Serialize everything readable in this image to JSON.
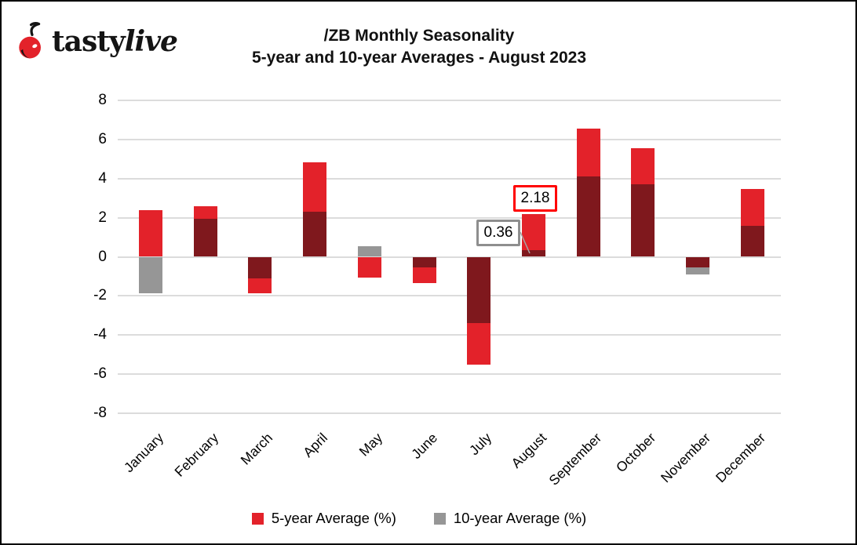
{
  "logo": {
    "tasty": "tasty",
    "live": "live"
  },
  "title": {
    "line1": "/ZB Monthly Seasonality",
    "line2": "5-year and 10-year Averages - August 2023"
  },
  "colors": {
    "five_year": "#E3222A",
    "ten_year": "#969696",
    "overlap": "#7F181D",
    "gridline": "#DCDCDC",
    "callout_red_border": "#FF0000",
    "callout_gray_border": "#8E8E8E",
    "leader_line": "#A6A6A6",
    "cherry": "#E3222A"
  },
  "legend": [
    {
      "label": "5-year Average (%)",
      "color": "#E3222A"
    },
    {
      "label": "10-year Average (%)",
      "color": "#969696"
    }
  ],
  "chart_data": {
    "type": "bar",
    "categories": [
      "January",
      "February",
      "March",
      "April",
      "May",
      "June",
      "July",
      "August",
      "September",
      "October",
      "November",
      "December"
    ],
    "series": [
      {
        "name": "5-year Average (%)",
        "color": "#E3222A",
        "values": [
          2.4,
          2.6,
          -1.85,
          4.85,
          -1.05,
          -1.35,
          -5.5,
          2.18,
          6.55,
          5.55,
          -0.55,
          3.45
        ]
      },
      {
        "name": "10-year Average (%)",
        "color": "#969696",
        "values": [
          -1.85,
          1.95,
          -1.1,
          2.3,
          0.55,
          -0.55,
          -3.4,
          0.36,
          4.1,
          3.7,
          -0.9,
          1.6
        ]
      }
    ],
    "overlap_note": "where both series share sign, the overlapping portion renders dark maroon",
    "ylim": [
      -8,
      8
    ],
    "yticks": [
      8,
      6,
      4,
      2,
      0,
      -2,
      -4,
      -6,
      -8
    ],
    "grid": true,
    "legend_position": "bottom",
    "annotations": [
      {
        "text": "2.18",
        "month": "August",
        "series": "5-year Average (%)",
        "border": "red"
      },
      {
        "text": "0.36",
        "month": "August",
        "series": "10-year Average (%)",
        "border": "gray"
      }
    ]
  }
}
